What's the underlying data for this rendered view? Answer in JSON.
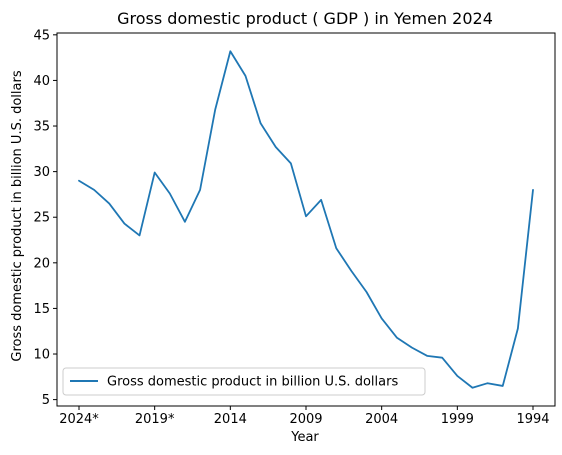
{
  "chart_data": {
    "type": "line",
    "title": "Gross domestic product ( GDP ) in Yemen 2024",
    "xlabel": "Year",
    "ylabel": "Gross domestic product in billion U.S. dollars",
    "x": [
      "2024*",
      "2023*",
      "2022*",
      "2021*",
      "2020*",
      "2019*",
      "2018",
      "2017",
      "2016",
      "2015",
      "2014",
      "2013",
      "2012",
      "2011",
      "2010",
      "2009",
      "2008",
      "2007",
      "2006",
      "2005",
      "2004",
      "2003",
      "2002",
      "2001",
      "2000",
      "1999",
      "1998",
      "1997",
      "1996",
      "1995",
      "1994"
    ],
    "xticks": [
      "2024*",
      "2019*",
      "2014",
      "2009",
      "2004",
      "1999",
      "1994"
    ],
    "ylim": [
      4.3,
      45.2
    ],
    "yticks": [
      5,
      10,
      15,
      20,
      25,
      30,
      35,
      40,
      45
    ],
    "grid": false,
    "legend_position": "lower-left",
    "series": [
      {
        "name": "Gross domestic product in billion U.S. dollars",
        "color": "#1f77b4",
        "values": [
          29.0,
          28.0,
          26.5,
          24.3,
          23.0,
          29.9,
          27.6,
          24.5,
          28.0,
          36.8,
          43.2,
          40.5,
          35.3,
          32.7,
          30.9,
          25.1,
          26.9,
          21.6,
          19.1,
          16.8,
          13.9,
          11.8,
          10.7,
          9.8,
          9.6,
          7.6,
          6.3,
          6.8,
          6.5,
          12.8,
          28.0
        ]
      }
    ]
  }
}
